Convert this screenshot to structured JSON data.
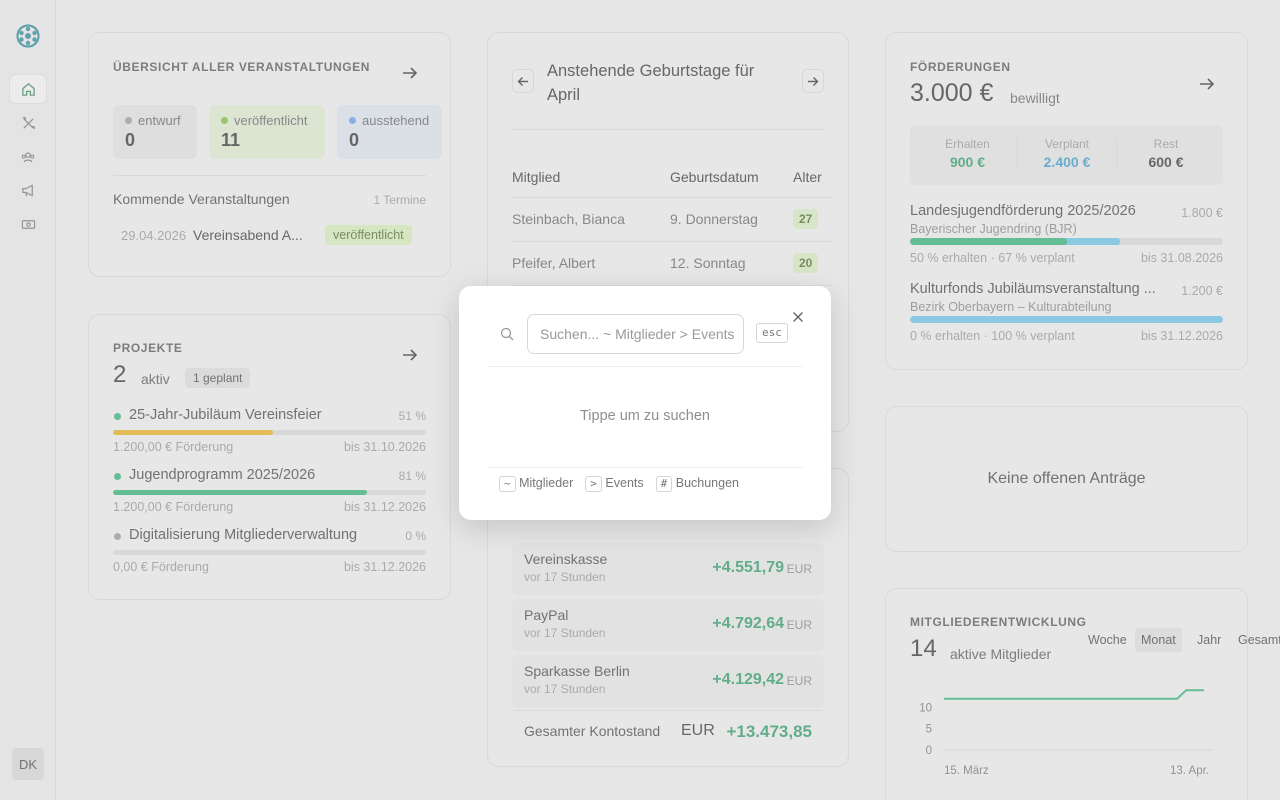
{
  "sidebar": {
    "items": [
      {
        "name": "home-icon",
        "active": true
      },
      {
        "name": "tools-icon",
        "active": false
      },
      {
        "name": "members-icon",
        "active": false
      },
      {
        "name": "megaphone-icon",
        "active": false
      },
      {
        "name": "money-icon",
        "active": false
      }
    ],
    "avatar": "DK"
  },
  "events": {
    "title": "Übersicht aller Veranstaltungen",
    "stats": [
      {
        "label": "entwurf",
        "value": "0",
        "color": "#8f8f8f"
      },
      {
        "label": "veröffentlicht",
        "value": "11",
        "color": "#6fb532"
      },
      {
        "label": "ausstehend",
        "value": "0",
        "color": "#5b8fe6"
      }
    ],
    "upcoming_label": "Kommende Veranstaltungen",
    "upcoming_count": "1 Termine",
    "row": {
      "date": "29.04.2026",
      "name": "Vereinsabend A...",
      "status": "veröffentlicht"
    }
  },
  "projects": {
    "title": "Projekte",
    "count": "2",
    "count_label": "aktiv",
    "planned_badge": "1 geplant",
    "items": [
      {
        "name": "25-Jahr-Jubiläum Vereinsfeier",
        "percent": "51 %",
        "progress": 0.51,
        "bar_color": "#e3a60c",
        "funding": "1.200,00 € Förderung",
        "until": "bis 31.10.2026",
        "dot": "#1fa86a"
      },
      {
        "name": "Jugendprogramm 2025/2026",
        "percent": "81 %",
        "progress": 0.81,
        "bar_color": "#1fa86a",
        "funding": "1.200,00 € Förderung",
        "until": "bis 31.12.2026",
        "dot": "#1fa86a"
      },
      {
        "name": "Digitalisierung Mitgliederverwaltung",
        "percent": "0 %",
        "progress": 0,
        "bar_color": "#1fa86a",
        "funding": "0,00 € Förderung",
        "until": "bis 31.12.2026",
        "dot": "#8f8f8f"
      }
    ]
  },
  "birthdays": {
    "title": "Anstehende Geburtstage für April",
    "columns": [
      "Mitglied",
      "Geburtsdatum",
      "Alter"
    ],
    "rows": [
      {
        "member": "Steinbach, Bianca",
        "date": "9. Donnerstag",
        "age": "27"
      },
      {
        "member": "Pfeifer, Albert",
        "date": "12. Sonntag",
        "age": "20"
      }
    ]
  },
  "accounts": {
    "items": [
      {
        "name": "Vereinskasse",
        "time": "vor 17 Stunden",
        "amount": "+4.551,79",
        "currency": "EUR"
      },
      {
        "name": "PayPal",
        "time": "vor 17 Stunden",
        "amount": "+4.792,64",
        "currency": "EUR"
      },
      {
        "name": "Sparkasse Berlin",
        "time": "vor 17 Stunden",
        "amount": "+4.129,42",
        "currency": "EUR"
      }
    ],
    "total_label": "Gesamter Kontostand",
    "total_currency": "EUR",
    "total_amount": "+13.473,85"
  },
  "funding": {
    "title": "Förderungen",
    "amount": "3.000 €",
    "amount_label": "bewilligt",
    "summary": [
      {
        "label": "Erhalten",
        "value": "900 €",
        "color": "#1b8f5a"
      },
      {
        "label": "Verplant",
        "value": "2.400 €",
        "color": "#2a8cc0"
      },
      {
        "label": "Rest",
        "value": "600 €",
        "color": "#222222"
      }
    ],
    "items": [
      {
        "name": "Landesjugendförderung 2025/2026",
        "amount": "1.800 €",
        "org": "Bayerischer Jugendring (BJR)",
        "received": 0.5,
        "planned": 0.67,
        "info": "50 % erhalten · 67 % verplant",
        "until": "bis 31.08.2026"
      },
      {
        "name": "Kulturfonds Jubiläumsveranstaltung ...",
        "amount": "1.200 €",
        "org": "Bezirk Oberbayern – Kulturabteilung",
        "received": 0,
        "planned": 1.0,
        "info": "0 % erhalten · 100 % verplant",
        "until": "bis 31.12.2026"
      }
    ]
  },
  "requests": {
    "empty_text": "Keine offenen Anträge"
  },
  "members": {
    "title": "Mitgliederentwicklung",
    "count": "14",
    "count_label": "aktive Mitglieder",
    "segments": [
      "Woche",
      "Monat",
      "Jahr",
      "Gesamt"
    ],
    "active_segment": "Monat"
  },
  "chart_data": {
    "type": "line",
    "x_ticks": [
      "15. März",
      "13. Apr."
    ],
    "y_ticks": [
      "10",
      "5",
      "0"
    ],
    "ylim": [
      0,
      15
    ],
    "series": [
      {
        "values": [
          12,
          12,
          12,
          12,
          12,
          12,
          12,
          12,
          12,
          12,
          12,
          12,
          12,
          12,
          12,
          12,
          12,
          12,
          12,
          12,
          12,
          12,
          12,
          12,
          12,
          12,
          12,
          14,
          14,
          14
        ],
        "color": "#1fa86a"
      }
    ]
  },
  "search": {
    "placeholder": "Suchen... ~ Mitglieder  > Events",
    "esc": "esc",
    "empty_text": "Tippe um zu suchen",
    "hints": [
      {
        "key": "~",
        "label": "Mitglieder"
      },
      {
        "key": ">",
        "label": "Events"
      },
      {
        "key": "#",
        "label": "Buchungen"
      }
    ]
  }
}
